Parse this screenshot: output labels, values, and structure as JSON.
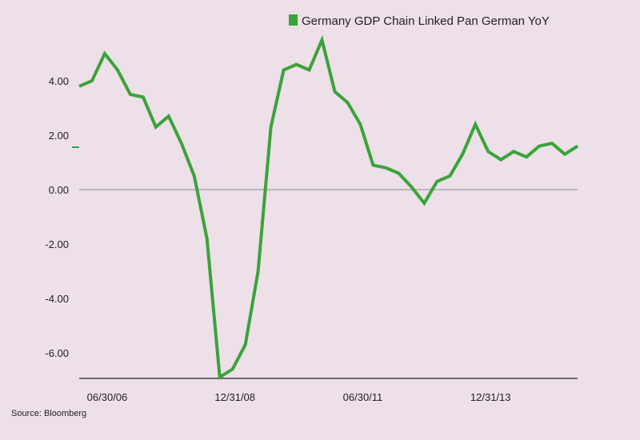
{
  "source": "Source: Bloomberg",
  "colors": {
    "line": "#3aa33a",
    "zero_line": "#aaaaaa",
    "axis": "#222222",
    "background": "#ede0e8"
  },
  "chart_data": {
    "type": "line",
    "title": "",
    "xlabel": "",
    "ylabel": "",
    "ylim": [
      -7,
      5.8
    ],
    "yticks": [
      4,
      2,
      0,
      -2,
      -4,
      -6
    ],
    "ytick_labels": [
      "4.00",
      "2.00",
      "0.00",
      "-2.00",
      "-4.00",
      "-6.00"
    ],
    "xtick_labels": [
      "06/30/06",
      "12/31/08",
      "06/30/11",
      "12/31/13"
    ],
    "legend": "top-right",
    "grid": false,
    "series": [
      {
        "name": "Germany GDP Chain Linked Pan German YoY",
        "color": "#3aa33a",
        "x": [
          "03/31/06",
          "06/30/06",
          "09/30/06",
          "12/31/06",
          "03/31/07",
          "06/30/07",
          "09/30/07",
          "12/31/07",
          "03/31/08",
          "06/30/08",
          "09/30/08",
          "12/31/08",
          "03/31/09",
          "06/30/09",
          "09/30/09",
          "12/31/09",
          "03/31/10",
          "06/30/10",
          "09/30/10",
          "12/31/10",
          "03/31/11",
          "06/30/11",
          "09/30/11",
          "12/31/11",
          "03/31/12",
          "06/30/12",
          "09/30/12",
          "12/31/12",
          "03/31/13",
          "06/30/13",
          "09/30/13",
          "12/31/13",
          "03/31/14",
          "06/30/14",
          "09/30/14",
          "12/31/14",
          "03/31/15",
          "06/30/15",
          "09/30/15",
          "12/31/15"
        ],
        "values": [
          3.8,
          4.0,
          5.0,
          4.4,
          3.5,
          3.4,
          2.3,
          2.7,
          1.7,
          0.5,
          -1.8,
          -6.9,
          -6.6,
          -5.7,
          -3.0,
          2.3,
          4.4,
          4.6,
          4.4,
          5.5,
          3.6,
          3.2,
          2.4,
          0.9,
          0.8,
          0.6,
          0.1,
          -0.5,
          0.3,
          0.5,
          1.3,
          2.4,
          1.4,
          1.1,
          1.4,
          1.2,
          1.6,
          1.7,
          1.3,
          1.6
        ]
      }
    ]
  }
}
